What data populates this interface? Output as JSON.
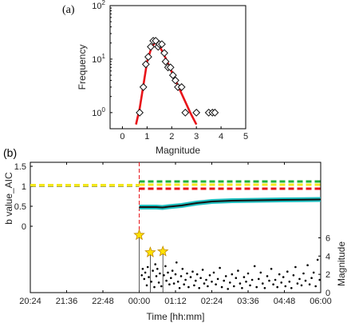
{
  "chart_data": [
    {
      "panel_label": "(a)",
      "type": "scatter",
      "xlabel": "Magnitude",
      "ylabel": "Frequency",
      "xlim": [
        -0.5,
        5
      ],
      "ylim_log": [
        0.5,
        100
      ],
      "yscale": "log",
      "x_ticks": [
        "0",
        "1",
        "2",
        "3",
        "4",
        "5"
      ],
      "y_ticks": [
        "10^0",
        "10^1",
        "10^2"
      ],
      "points": [
        [
          0.7,
          1
        ],
        [
          0.85,
          3
        ],
        [
          0.95,
          8
        ],
        [
          1.05,
          11
        ],
        [
          1.15,
          17
        ],
        [
          1.25,
          22
        ],
        [
          1.35,
          22
        ],
        [
          1.45,
          17
        ],
        [
          1.5,
          19
        ],
        [
          1.6,
          19
        ],
        [
          1.7,
          13
        ],
        [
          1.75,
          9
        ],
        [
          1.85,
          7
        ],
        [
          1.95,
          7
        ],
        [
          2.05,
          5
        ],
        [
          2.15,
          4
        ],
        [
          2.25,
          3
        ],
        [
          2.4,
          3
        ],
        [
          2.55,
          1
        ],
        [
          3.0,
          1
        ],
        [
          3.5,
          1
        ],
        [
          3.65,
          1
        ],
        [
          3.75,
          1
        ]
      ],
      "fit_color": "#e8141a",
      "fit_curve": [
        [
          0.55,
          0.6
        ],
        [
          0.7,
          1.2
        ],
        [
          0.85,
          3.2
        ],
        [
          1.0,
          9
        ],
        [
          1.15,
          15
        ],
        [
          1.3,
          20
        ],
        [
          1.4,
          20
        ],
        [
          1.55,
          16
        ],
        [
          1.75,
          10.5
        ],
        [
          2.0,
          5.8
        ],
        [
          2.25,
          3.2
        ],
        [
          2.5,
          1.8
        ],
        [
          2.75,
          1.0
        ],
        [
          3.0,
          0.6
        ]
      ]
    },
    {
      "panel_label": "(b)",
      "type": "line",
      "xlabel": "Time [hh:mm]",
      "ylabel_left": "b value_AIC",
      "ylabel_right": "Magnitude",
      "x_ticks": [
        "20:24",
        "21:36",
        "22:48",
        "00:00",
        "01:12",
        "02:24",
        "03:36",
        "04:48",
        "06:00"
      ],
      "y_ticks_left": [
        "1.5",
        "1",
        "0.5",
        "0"
      ],
      "y_ticks_right": [
        "6",
        "4",
        "2",
        "0"
      ],
      "b_value_xlim_minutes": [
        0,
        576
      ],
      "b_value_ylim": [
        -0.1,
        1.5
      ],
      "reference_lines": [
        {
          "color": "#f4e81c",
          "x": [
            0,
            216
          ],
          "y": 1.03,
          "style": "dashed"
        },
        {
          "color": "#20b23c",
          "x": [
            216,
            576
          ],
          "y": 1.12,
          "style": "dashed"
        },
        {
          "color": "#f4e81c",
          "x": [
            216,
            576
          ],
          "y": 1.04,
          "style": "dashed"
        },
        {
          "color": "#e8141a",
          "x": [
            216,
            576
          ],
          "y": 0.94,
          "style": "dashed"
        }
      ],
      "mainshock_line_color": "#e8141a",
      "mainshock_time_minutes": 216,
      "b_value_series": {
        "color": "#111111",
        "band_color": "#1fbfc0",
        "points": [
          [
            216,
            0.48
          ],
          [
            250,
            0.48
          ],
          [
            262,
            0.47
          ],
          [
            275,
            0.49
          ],
          [
            300,
            0.52
          ],
          [
            330,
            0.58
          ],
          [
            360,
            0.62
          ],
          [
            400,
            0.64
          ],
          [
            450,
            0.65
          ],
          [
            500,
            0.66
          ],
          [
            576,
            0.67
          ]
        ]
      },
      "magnitude_ylim": [
        0,
        7
      ],
      "star_events": [
        [
          216,
          6.3
        ],
        [
          238,
          4.4
        ],
        [
          263,
          4.5
        ]
      ],
      "star_color": "#ffe300",
      "small_events": [
        [
          221,
          1.9
        ],
        [
          223,
          2.6
        ],
        [
          226,
          1.5
        ],
        [
          228,
          2.2
        ],
        [
          231,
          0.8
        ],
        [
          233,
          2.8
        ],
        [
          235,
          1.7
        ],
        [
          240,
          1.2
        ],
        [
          243,
          2.4
        ],
        [
          246,
          0.6
        ],
        [
          248,
          3.1
        ],
        [
          250,
          1.8
        ],
        [
          252,
          2.6
        ],
        [
          255,
          1.1
        ],
        [
          257,
          2.1
        ],
        [
          260,
          0.7
        ],
        [
          265,
          1.9
        ],
        [
          268,
          2.9
        ],
        [
          270,
          1.3
        ],
        [
          273,
          2.2
        ],
        [
          276,
          0.9
        ],
        [
          279,
          1.6
        ],
        [
          282,
          2.4
        ],
        [
          285,
          1.0
        ],
        [
          288,
          2.0
        ],
        [
          290,
          3.3
        ],
        [
          293,
          1.2
        ],
        [
          296,
          0.5
        ],
        [
          299,
          1.8
        ],
        [
          302,
          2.6
        ],
        [
          305,
          0.9
        ],
        [
          308,
          1.4
        ],
        [
          311,
          2.1
        ],
        [
          314,
          0.6
        ],
        [
          318,
          1.7
        ],
        [
          322,
          2.3
        ],
        [
          325,
          0.8
        ],
        [
          328,
          1.3
        ],
        [
          331,
          2.0
        ],
        [
          335,
          0.5
        ],
        [
          338,
          1.6
        ],
        [
          342,
          2.5
        ],
        [
          345,
          1.0
        ],
        [
          349,
          1.4
        ],
        [
          352,
          0.7
        ],
        [
          356,
          1.9
        ],
        [
          360,
          1.2
        ],
        [
          364,
          2.2
        ],
        [
          368,
          0.9
        ],
        [
          372,
          1.5
        ],
        [
          376,
          2.7
        ],
        [
          380,
          0.6
        ],
        [
          384,
          1.3
        ],
        [
          388,
          1.8
        ],
        [
          392,
          0.4
        ],
        [
          396,
          1.1
        ],
        [
          400,
          2.0
        ],
        [
          404,
          0.7
        ],
        [
          408,
          1.6
        ],
        [
          412,
          2.4
        ],
        [
          416,
          1.0
        ],
        [
          420,
          0.5
        ],
        [
          424,
          1.7
        ],
        [
          428,
          1.2
        ],
        [
          432,
          2.1
        ],
        [
          436,
          0.8
        ],
        [
          440,
          1.4
        ],
        [
          445,
          2.9
        ],
        [
          449,
          0.6
        ],
        [
          453,
          1.5
        ],
        [
          457,
          2.2
        ],
        [
          461,
          1.0
        ],
        [
          465,
          0.5
        ],
        [
          470,
          1.8
        ],
        [
          474,
          1.3
        ],
        [
          478,
          2.6
        ],
        [
          482,
          0.9
        ],
        [
          486,
          1.4
        ],
        [
          490,
          0.6
        ],
        [
          494,
          2.0
        ],
        [
          498,
          1.1
        ],
        [
          502,
          1.7
        ],
        [
          506,
          0.7
        ],
        [
          510,
          2.3
        ],
        [
          514,
          1.2
        ],
        [
          518,
          0.5
        ],
        [
          522,
          1.9
        ],
        [
          526,
          2.8
        ],
        [
          530,
          1.0
        ],
        [
          534,
          1.5
        ],
        [
          538,
          0.8
        ],
        [
          542,
          2.1
        ],
        [
          546,
          1.3
        ],
        [
          550,
          3.0
        ],
        [
          554,
          0.9
        ],
        [
          558,
          1.6
        ],
        [
          562,
          2.2
        ],
        [
          566,
          0.7
        ],
        [
          570,
          3.6
        ],
        [
          574,
          1.4
        ]
      ]
    }
  ]
}
